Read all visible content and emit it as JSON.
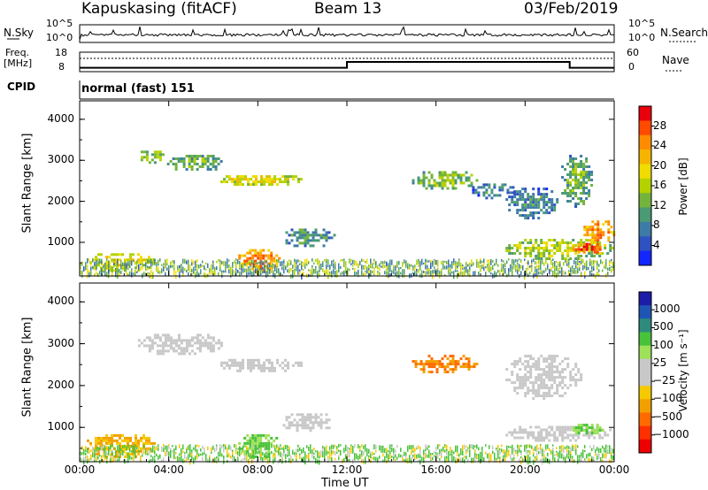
{
  "header": {
    "station": "Kapuskasing (fitACF)",
    "beam": "Beam 13",
    "date": "03/Feb/2019"
  },
  "strips": {
    "nsky_label": "N.Sky",
    "nsky_tick_top": "10^5",
    "nsky_tick_bottom": "10^0",
    "nsearch_label": "N.Search",
    "nsearch_tick_top": "10^5",
    "nsearch_tick_bottom": "10^0",
    "freq_label_line1": "Freq.",
    "freq_label_line2": "[MHz]",
    "freq_tick_top": "18",
    "freq_tick_bottom": "8",
    "nave_label": "Nave",
    "nave_tick_top": "60",
    "nave_tick_bottom": "0",
    "cpid_label": "CPID",
    "cpid_value": "normal (fast) 151"
  },
  "power_colorbar": {
    "label": "Power [dB]",
    "ticks": [
      "28",
      "24",
      "20",
      "16",
      "12",
      "8",
      "4"
    ],
    "colors": [
      "#e8000c",
      "#ff4a00",
      "#ff8c00",
      "#f5b400",
      "#f0dc00",
      "#b4d200",
      "#74b43c",
      "#4a9a74",
      "#3e7aa6",
      "#2e52c2",
      "#1226ff"
    ]
  },
  "velocity_colorbar": {
    "label": "Velocity [m s⁻¹]",
    "ticks": [
      "1000",
      "500",
      "100",
      "25",
      "−25",
      "−100",
      "−500",
      "−1000"
    ],
    "colors": [
      "#1c1ca8",
      "#1e55b4",
      "#2e8a7c",
      "#48c23a",
      "#9ee05a",
      "#c8c8c8",
      "#c8c8c8",
      "#f5c900",
      "#f2a000",
      "#ff6a00",
      "#ff3000",
      "#ee0000"
    ]
  },
  "chart_data": {
    "type": "heatmap",
    "x_label": "Time UT",
    "x_ticks": [
      "00:00",
      "04:00",
      "08:00",
      "12:00",
      "16:00",
      "20:00",
      "00:00"
    ],
    "x_range_hours": [
      0,
      24
    ],
    "y_label": "Slant Range [km]",
    "y_ticks": [
      "1000",
      "2000",
      "3000",
      "4000"
    ],
    "y_range_km": [
      180,
      4450
    ],
    "frequency_mhz": [
      {
        "from_hour": 0,
        "to_hour": 12,
        "value": 10
      },
      {
        "from_hour": 12,
        "to_hour": 22,
        "value": 13
      },
      {
        "from_hour": 22,
        "to_hour": 24,
        "value": 10
      }
    ],
    "power_regions": [
      {
        "t": [
          2.5,
          3.8
        ],
        "r": [
          2950,
          3300
        ],
        "db": 14
      },
      {
        "t": [
          3.8,
          6.5
        ],
        "r": [
          2750,
          3200
        ],
        "db": 12
      },
      {
        "t": [
          6.2,
          10.0
        ],
        "r": [
          2400,
          2700
        ],
        "db": 18
      },
      {
        "t": [
          0.2,
          3.5
        ],
        "r": [
          300,
          800
        ],
        "db": 18
      },
      {
        "t": [
          7.0,
          9.0
        ],
        "r": [
          300,
          900
        ],
        "db": 24
      },
      {
        "t": [
          9.0,
          11.5
        ],
        "r": [
          900,
          1400
        ],
        "db": 10
      },
      {
        "t": [
          14.8,
          17.8
        ],
        "r": [
          2300,
          2800
        ],
        "db": 14
      },
      {
        "t": [
          17.5,
          19.5
        ],
        "r": [
          2100,
          2500
        ],
        "db": 8
      },
      {
        "t": [
          19.0,
          21.5
        ],
        "r": [
          1600,
          2400
        ],
        "db": 8
      },
      {
        "t": [
          21.5,
          23.0
        ],
        "r": [
          1900,
          3200
        ],
        "db": 12
      },
      {
        "t": [
          19.0,
          24.0
        ],
        "r": [
          600,
          1150
        ],
        "db": 16
      },
      {
        "t": [
          22.0,
          23.5
        ],
        "r": [
          750,
          1050
        ],
        "db": 28
      },
      {
        "t": [
          22.5,
          24.0
        ],
        "r": [
          1000,
          1600
        ],
        "db": 24
      }
    ],
    "velocity_regions": [
      {
        "t": [
          2.5,
          6.5
        ],
        "r": [
          2750,
          3300
        ],
        "v": 0
      },
      {
        "t": [
          6.2,
          10.0
        ],
        "r": [
          2350,
          2700
        ],
        "v": 0
      },
      {
        "t": [
          0.2,
          3.5
        ],
        "r": [
          300,
          900
        ],
        "v": -100
      },
      {
        "t": [
          7.0,
          9.0
        ],
        "r": [
          300,
          900
        ],
        "v": 100
      },
      {
        "t": [
          9.0,
          11.5
        ],
        "r": [
          900,
          1400
        ],
        "v": 0
      },
      {
        "t": [
          14.8,
          17.8
        ],
        "r": [
          2300,
          2800
        ],
        "v": -500
      },
      {
        "t": [
          19.0,
          22.5
        ],
        "r": [
          1700,
          2800
        ],
        "v": 0
      },
      {
        "t": [
          19.0,
          24.0
        ],
        "r": [
          700,
          1100
        ],
        "v": 0
      },
      {
        "t": [
          22.0,
          23.5
        ],
        "r": [
          850,
          1150
        ],
        "v": 100
      }
    ]
  }
}
